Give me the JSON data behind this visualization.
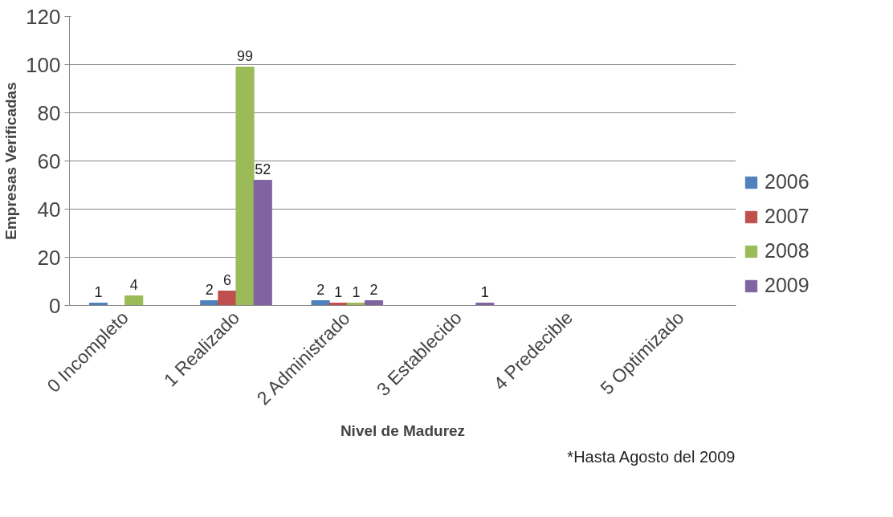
{
  "chart_data": {
    "type": "bar",
    "categories": [
      "0 Incompleto",
      "1 Realizado",
      "2 Administrado",
      "3 Establecido",
      "4 Predecible",
      "5 Optimizado"
    ],
    "series": [
      {
        "name": "2006",
        "color": "#4f81bd",
        "values": [
          1,
          2,
          2,
          0,
          0,
          0
        ],
        "value_labels": [
          "1",
          "2",
          "2",
          null,
          null,
          null
        ]
      },
      {
        "name": "2007",
        "color": "#c0504d",
        "values": [
          0,
          6,
          1,
          0,
          0,
          0
        ],
        "value_labels": [
          null,
          "6",
          "1",
          null,
          null,
          null
        ]
      },
      {
        "name": "2008",
        "color": "#9bbb59",
        "values": [
          4,
          99,
          1,
          0,
          0,
          0
        ],
        "value_labels": [
          "4",
          "99",
          "1",
          null,
          null,
          null
        ]
      },
      {
        "name": "2009",
        "color": "#8064a2",
        "values": [
          0,
          52,
          2,
          1,
          0,
          0
        ],
        "value_labels": [
          null,
          "52",
          "2",
          "1",
          null,
          null
        ]
      }
    ],
    "xlabel": "Nivel de Madurez",
    "ylabel": "Empresas Verificadas",
    "ylim": [
      0,
      120
    ],
    "yticks": [
      0,
      20,
      40,
      60,
      80,
      100,
      120
    ],
    "grid": "y",
    "legend": "right",
    "annotations": [
      "*Hasta Agosto del 2009"
    ]
  }
}
